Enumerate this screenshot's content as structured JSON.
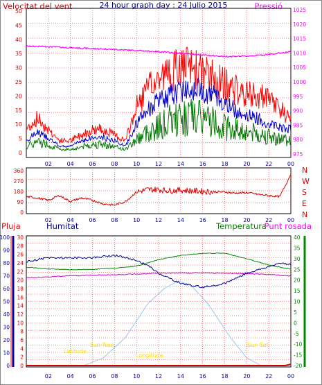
{
  "header": {
    "left_title": "Velocitat del vent",
    "center_title": "24 hour graph day : 24 Julio 2015",
    "right_title": "Pressió"
  },
  "labels": {
    "rain": "Pluja",
    "humidity": "Humitat",
    "temperature": "Temperatura",
    "dewpoint": "Punt rosada",
    "sunrise": "Sun Rise",
    "sunset": "Sun Set",
    "latitude": "Latitude",
    "longitude": "Longitude"
  },
  "colors": {
    "wind_gust": "#ff0000",
    "wind_avg": "#0000cc",
    "wind_low": "#007700",
    "pressure": "#ff00ff",
    "direction": "#dd0000",
    "rain": "#cc0000",
    "humidity": "#000099",
    "temperature": "#008800",
    "dewpoint": "#cc00cc",
    "solar": "#aaccee",
    "grid": "#ff0000",
    "rain_axis": "#ff0000",
    "hum_axis": "#0000aa",
    "temp_axis": "#008800",
    "sun_label": "#ffd700"
  },
  "chart_data": [
    {
      "type": "line",
      "panel": "wind_pressure",
      "x_ticks": [
        "02",
        "04",
        "06",
        "08",
        "10",
        "12",
        "14",
        "16",
        "18",
        "20",
        "22",
        "00"
      ],
      "y_left_ticks": [
        "50",
        "45",
        "40",
        "35",
        "30",
        "25",
        "20",
        "15",
        "10",
        "5",
        "0"
      ],
      "y_right_ticks": [
        "1025",
        "1020",
        "1015",
        "1010",
        "1005",
        "1000",
        "995",
        "990",
        "985",
        "980",
        "975"
      ],
      "ylim_left": [
        0,
        50
      ],
      "ylim_right": [
        975,
        1025
      ],
      "series": [
        {
          "key": "gust",
          "x": [
            0,
            1,
            2,
            3,
            4,
            5,
            6,
            7,
            8,
            9,
            10,
            11,
            12,
            13,
            14,
            15,
            16,
            17,
            18,
            19,
            20,
            21,
            22,
            23,
            24
          ],
          "values": [
            8,
            12,
            8,
            4,
            4,
            6,
            8,
            8,
            6,
            4,
            16,
            22,
            26,
            28,
            30,
            30,
            28,
            26,
            24,
            22,
            20,
            20,
            18,
            16,
            10
          ]
        },
        {
          "key": "avg",
          "x": [
            0,
            1,
            2,
            3,
            4,
            5,
            6,
            7,
            8,
            9,
            10,
            11,
            12,
            13,
            14,
            15,
            16,
            17,
            18,
            19,
            20,
            21,
            22,
            23,
            24
          ],
          "values": [
            4,
            7,
            5,
            2,
            2,
            4,
            5,
            5,
            4,
            2,
            10,
            15,
            18,
            20,
            22,
            23,
            22,
            20,
            17,
            15,
            13,
            12,
            10,
            9,
            8
          ]
        },
        {
          "key": "low",
          "x": [
            0,
            1,
            2,
            3,
            4,
            5,
            6,
            7,
            8,
            9,
            10,
            11,
            12,
            13,
            14,
            15,
            16,
            17,
            18,
            19,
            20,
            21,
            22,
            23,
            24
          ],
          "values": [
            2,
            4,
            3,
            1,
            1,
            2,
            3,
            3,
            2,
            1,
            5,
            8,
            10,
            12,
            13,
            14,
            13,
            12,
            10,
            9,
            8,
            7,
            6,
            5,
            5
          ]
        },
        {
          "key": "pressure",
          "x": [
            0,
            2,
            4,
            6,
            8,
            10,
            12,
            14,
            16,
            18,
            20,
            22,
            24
          ],
          "values": [
            1012.5,
            1012.4,
            1012,
            1011.7,
            1011.4,
            1011,
            1010.6,
            1010,
            1009.4,
            1008.9,
            1009,
            1009.6,
            1010.6
          ]
        }
      ]
    },
    {
      "type": "line",
      "panel": "wind_direction",
      "x_ticks": [
        "02",
        "04",
        "06",
        "08",
        "10",
        "12",
        "14",
        "16",
        "18",
        "20",
        "22",
        "00"
      ],
      "y_left_ticks": [
        "360",
        "270",
        "180",
        "90",
        "0"
      ],
      "y_right_ticks": [
        "N",
        "W",
        "S",
        "E",
        "N"
      ],
      "ylim": [
        0,
        360
      ],
      "series": [
        {
          "key": "direction",
          "x": [
            0,
            1,
            2,
            3,
            4,
            5,
            6,
            7,
            8,
            9,
            10,
            11,
            12,
            13,
            14,
            15,
            16,
            17,
            18,
            19,
            20,
            21,
            22,
            23,
            24
          ],
          "values": [
            130,
            120,
            100,
            140,
            90,
            120,
            100,
            70,
            60,
            90,
            170,
            190,
            190,
            180,
            185,
            180,
            175,
            170,
            170,
            160,
            165,
            150,
            140,
            130,
            320
          ]
        }
      ]
    },
    {
      "type": "line",
      "panel": "rain_hum_temp",
      "x_ticks": [
        "02",
        "04",
        "06",
        "08",
        "10",
        "12",
        "14",
        "16",
        "18",
        "20",
        "22",
        "00"
      ],
      "y_rain_ticks": [
        "100",
        "90",
        "80",
        "70",
        "60",
        "50",
        "40",
        "30",
        "20",
        "10",
        "0"
      ],
      "y_hum_ticks": [
        "30",
        "28",
        "26",
        "24",
        "22",
        "20",
        "18",
        "16",
        "14",
        "12",
        "10",
        "8",
        "6",
        "4",
        "2",
        "0"
      ],
      "y_temp_ticks": [
        "40",
        "35",
        "30",
        "25",
        "20",
        "15",
        "10",
        "5",
        "0",
        "-5",
        "-10",
        "-15",
        "-20"
      ],
      "ylim_hum": [
        0,
        100
      ],
      "ylim_temp": [
        -20,
        40
      ],
      "series": [
        {
          "key": "humidity",
          "x": [
            0,
            2,
            4,
            6,
            8,
            10,
            11,
            12,
            13,
            14,
            16,
            18,
            20,
            22,
            23,
            24
          ],
          "values": [
            81,
            84,
            84,
            84,
            86,
            82,
            78,
            72,
            68,
            64,
            61,
            64,
            72,
            77,
            80,
            79
          ]
        },
        {
          "key": "temperature",
          "x": [
            0,
            2,
            4,
            6,
            8,
            10,
            12,
            14,
            16,
            18,
            20,
            22,
            24
          ],
          "values": [
            26,
            25.2,
            24.8,
            25,
            25.5,
            26.5,
            29.5,
            31.5,
            32.5,
            32.5,
            30,
            27,
            25
          ]
        },
        {
          "key": "dewpoint",
          "x": [
            0,
            2,
            4,
            6,
            8,
            10,
            12,
            14,
            16,
            18,
            20,
            22,
            24
          ],
          "values": [
            21,
            21.5,
            22,
            22.2,
            22.5,
            22.8,
            23.2,
            23.3,
            23.3,
            23.2,
            23,
            22.6,
            21.8
          ]
        },
        {
          "key": "solar",
          "x": [
            5.2,
            7,
            9,
            11,
            12.5,
            13.8,
            15,
            16.5,
            18.5,
            20,
            21.3
          ],
          "values": [
            0,
            6,
            22,
            48,
            60,
            66,
            62,
            48,
            22,
            6,
            0
          ]
        },
        {
          "key": "rain",
          "x": [
            0,
            23.5,
            24
          ],
          "values": [
            0,
            0,
            1
          ]
        }
      ]
    }
  ]
}
